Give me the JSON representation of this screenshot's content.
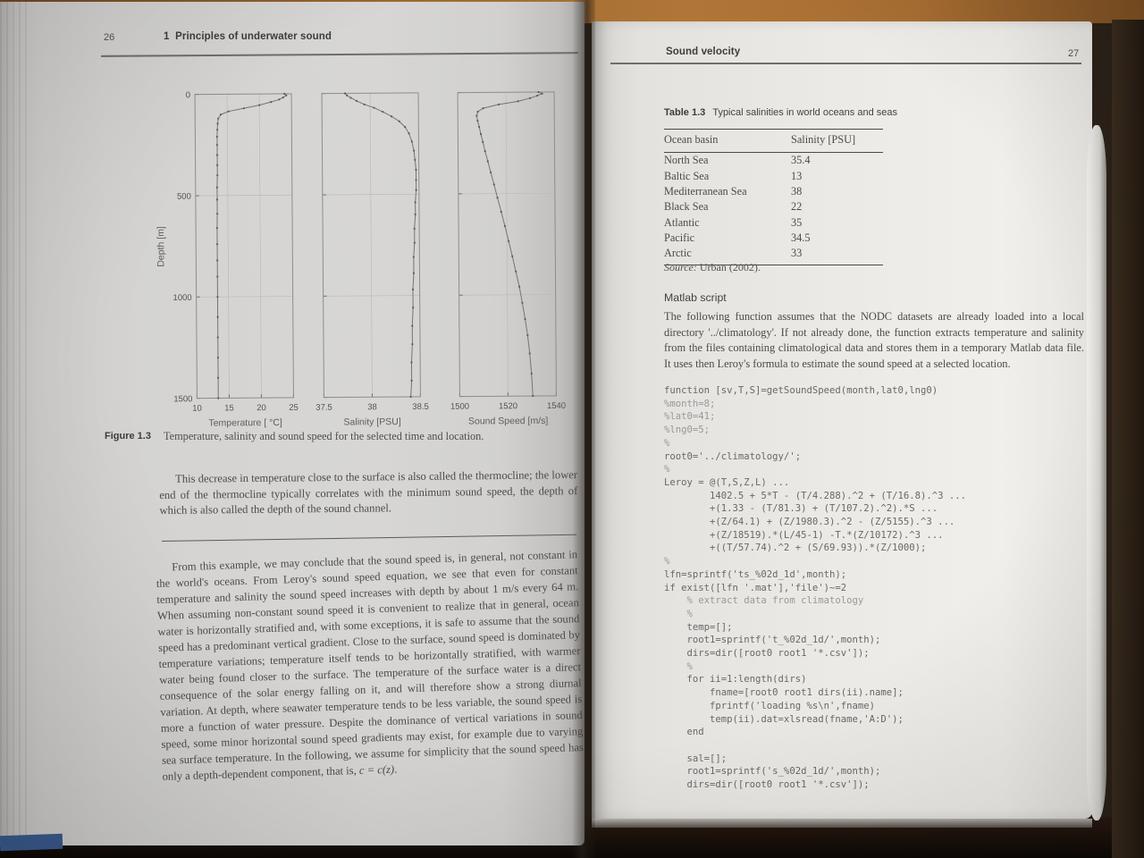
{
  "left_page": {
    "page_number": "26",
    "chapter_number": "1",
    "running_header": "Principles of underwater sound",
    "figure_label": "Figure 1.3",
    "figure_caption": "Temperature, salinity and sound speed for the selected time and location.",
    "paragraph1": "This decrease in temperature close to the surface is also called the thermocline; the lower end of the thermocline typically correlates with the minimum sound speed, the depth of which is also called the depth of the sound channel.",
    "paragraph2": "From this example, we may conclude that the sound speed is, in general, not constant in the world's oceans. From Leroy's sound speed equation, we see that even for constant temperature and salinity the sound speed increases with depth by about 1 m/s every 64 m. When assuming non-constant sound speed it is convenient to realize that in general, ocean water is horizontally stratified and, with some exceptions, it is safe to assume that the sound speed has a predominant vertical gradient. Close to the surface, sound speed is dominated by temperature variations; temperature itself tends to be horizontally stratified, with warmer water being found closer to the surface. The temperature of the surface water is a direct consequence of the solar energy falling on it, and will therefore show a strong diurnal variation. At depth, where seawater temperature tends to be less variable, the sound speed is more a function of water pressure. Despite the dominance of vertical variations in sound speed, some minor horizontal sound speed gradients may exist, for example due to varying sea surface temperature. In the following, we assume for simplicity that the sound speed has only a depth-dependent component, that is, ",
    "paragraph2_math": "c = c(z)",
    "paragraph2_end": "."
  },
  "right_page": {
    "page_number": "27",
    "running_header": "Sound velocity",
    "table": {
      "label": "Table 1.3",
      "caption": "Typical salinities in world oceans and seas",
      "columns": [
        "Ocean basin",
        "Salinity [PSU]"
      ],
      "rows": [
        [
          "North Sea",
          "35.4"
        ],
        [
          "Baltic Sea",
          "13"
        ],
        [
          "Mediterranean Sea",
          "38"
        ],
        [
          "Black Sea",
          "22"
        ],
        [
          "Atlantic",
          "35"
        ],
        [
          "Pacific",
          "34.5"
        ],
        [
          "Arctic",
          "33"
        ]
      ],
      "source_label": "Source:",
      "source_text": "Urban (2002)."
    },
    "matlab_heading": "Matlab script",
    "matlab_intro": "The following function assumes that the NODC datasets are already loaded into a local directory '../climatology'. If not already done, the function extracts temperature and salinity from the files containing climatological data and stores them in a temporary Matlab data file. It uses then Leroy's formula to estimate the sound speed at a selected location.",
    "code_lines": [
      "function [sv,T,S]=getSoundSpeed(month,lat0,lng0)",
      "%month=8;",
      "%lat0=41;",
      "%lng0=5;",
      "%",
      "root0='../climatology/';",
      "%",
      "Leroy = @(T,S,Z,L) ...",
      "        1402.5 + 5*T - (T/4.288).^2 + (T/16.8).^3 ...",
      "        +(1.33 - (T/81.3) + (T/107.2).^2).*S ...",
      "        +(Z/64.1) + (Z/1980.3).^2 - (Z/5155).^3 ...",
      "        +(Z/18519).*(L/45-1) -T.*(Z/10172).^3 ...",
      "        +((T/57.74).^2 + (S/69.93)).*(Z/1000);",
      "%",
      "lfn=sprintf('ts_%02d_1d',month);",
      "if exist([lfn '.mat'],'file')~=2",
      "    % extract data from climatology",
      "    %",
      "    temp=[];",
      "    root1=sprintf('t_%02d_1d/',month);",
      "    dirs=dir([root0 root1 '*.csv']);",
      "    %",
      "    for ii=1:length(dirs)",
      "        fname=[root0 root1 dirs(ii).name];",
      "        fprintf('loading %s\\n',fname)",
      "        temp(ii).dat=xlsread(fname,'A:D');",
      "    end",
      "",
      "    sal=[];",
      "    root1=sprintf('s_%02d_1d/',month);",
      "    dirs=dir([root0 root1 '*.csv']);"
    ]
  },
  "chart_data": [
    {
      "type": "line",
      "xlabel": "Temperature [ °C]",
      "ylabel": "Depth [m]",
      "xlim": [
        10,
        25
      ],
      "xticks": [
        10,
        15,
        20,
        25
      ],
      "ylim": [
        0,
        1500
      ],
      "yticks": [
        0,
        500,
        1000,
        1500
      ],
      "y_inverted": true,
      "points": [
        [
          23.9,
          0
        ],
        [
          24.2,
          8
        ],
        [
          23.7,
          18
        ],
        [
          23.1,
          28
        ],
        [
          21.8,
          40
        ],
        [
          20.0,
          55
        ],
        [
          17.6,
          70
        ],
        [
          15.2,
          85
        ],
        [
          14.0,
          100
        ],
        [
          13.6,
          120
        ],
        [
          13.5,
          145
        ],
        [
          13.45,
          175
        ],
        [
          13.4,
          210
        ],
        [
          13.4,
          250
        ],
        [
          13.4,
          300
        ],
        [
          13.4,
          350
        ],
        [
          13.4,
          400
        ],
        [
          13.35,
          460
        ],
        [
          13.35,
          520
        ],
        [
          13.35,
          590
        ],
        [
          13.3,
          660
        ],
        [
          13.3,
          740
        ],
        [
          13.3,
          820
        ],
        [
          13.3,
          900
        ],
        [
          13.3,
          1000
        ],
        [
          13.3,
          1100
        ],
        [
          13.3,
          1200
        ],
        [
          13.3,
          1300
        ],
        [
          13.3,
          1400
        ],
        [
          13.3,
          1500
        ]
      ]
    },
    {
      "type": "line",
      "xlabel": "Salinity [PSU]",
      "ylabel": "Depth [m]",
      "xlim": [
        37.5,
        38.5
      ],
      "xticks": [
        37.5,
        38,
        38.5
      ],
      "ylim": [
        0,
        1500
      ],
      "yticks": [
        0,
        500,
        1000,
        1500
      ],
      "y_inverted": true,
      "points": [
        [
          37.74,
          0
        ],
        [
          37.76,
          10
        ],
        [
          37.8,
          22
        ],
        [
          37.86,
          38
        ],
        [
          37.94,
          55
        ],
        [
          38.04,
          72
        ],
        [
          38.13,
          92
        ],
        [
          38.22,
          115
        ],
        [
          38.3,
          140
        ],
        [
          38.36,
          168
        ],
        [
          38.4,
          200
        ],
        [
          38.43,
          240
        ],
        [
          38.45,
          285
        ],
        [
          38.46,
          330
        ],
        [
          38.47,
          380
        ],
        [
          38.47,
          430
        ],
        [
          38.47,
          480
        ],
        [
          38.46,
          540
        ],
        [
          38.46,
          600
        ],
        [
          38.45,
          670
        ],
        [
          38.45,
          740
        ],
        [
          38.44,
          810
        ],
        [
          38.44,
          890
        ],
        [
          38.43,
          970
        ],
        [
          38.43,
          1060
        ],
        [
          38.42,
          1150
        ],
        [
          38.42,
          1240
        ],
        [
          38.41,
          1330
        ],
        [
          38.41,
          1420
        ],
        [
          38.4,
          1500
        ]
      ]
    },
    {
      "type": "line",
      "xlabel": "Sound Speed [m/s]",
      "ylabel": "Depth [m]",
      "xlim": [
        1500,
        1540
      ],
      "xticks": [
        1500,
        1520,
        1540
      ],
      "ylim": [
        0,
        1500
      ],
      "yticks": [
        0,
        500,
        1000,
        1500
      ],
      "y_inverted": true,
      "points": [
        [
          1533.5,
          0
        ],
        [
          1535.0,
          8
        ],
        [
          1533.0,
          18
        ],
        [
          1530.0,
          30
        ],
        [
          1525.0,
          45
        ],
        [
          1517.0,
          60
        ],
        [
          1510.5,
          78
        ],
        [
          1508.3,
          95
        ],
        [
          1507.8,
          115
        ],
        [
          1508.2,
          140
        ],
        [
          1508.8,
          170
        ],
        [
          1509.5,
          205
        ],
        [
          1510.3,
          245
        ],
        [
          1511.2,
          290
        ],
        [
          1512.3,
          340
        ],
        [
          1513.5,
          395
        ],
        [
          1514.8,
          455
        ],
        [
          1516.2,
          520
        ],
        [
          1517.7,
          590
        ],
        [
          1519.2,
          660
        ],
        [
          1520.7,
          735
        ],
        [
          1522.2,
          810
        ],
        [
          1523.6,
          885
        ],
        [
          1525.0,
          960
        ],
        [
          1526.2,
          1040
        ],
        [
          1527.3,
          1120
        ],
        [
          1528.3,
          1200
        ],
        [
          1529.1,
          1290
        ],
        [
          1529.8,
          1390
        ],
        [
          1530.3,
          1500
        ]
      ]
    }
  ]
}
